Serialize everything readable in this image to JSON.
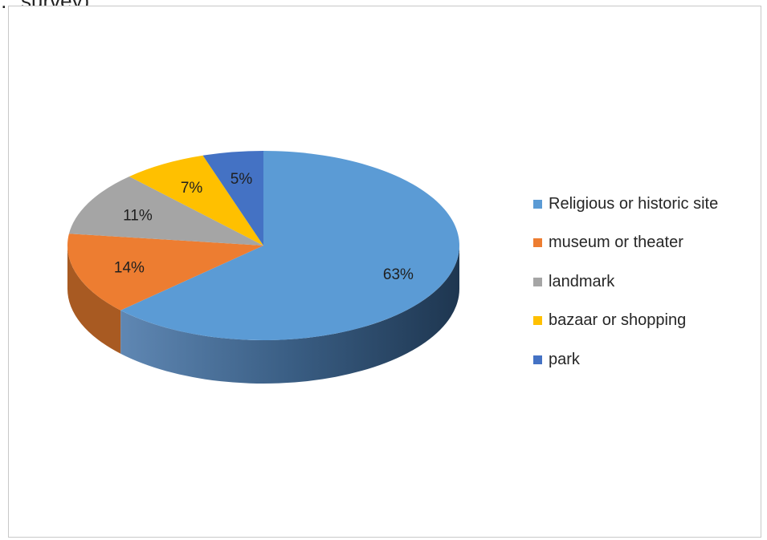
{
  "page": {
    "top_text": "…survey)."
  },
  "chart_data": {
    "type": "pie",
    "title": "",
    "categories": [
      "Religious or historic site",
      "museum or theater",
      "landmark",
      "bazaar or shopping",
      "park"
    ],
    "values": [
      63,
      14,
      11,
      7,
      5
    ],
    "labels": [
      "63%",
      "14%",
      "11%",
      "7%",
      "5%"
    ],
    "colors": [
      "#5b9bd5",
      "#ed7d31",
      "#a5a5a5",
      "#ffc000",
      "#4472c4"
    ],
    "side_colors": [
      "#2d5375",
      "#a85a22",
      "#727272",
      "#b48a00",
      "#2b4c86"
    ],
    "legend_position": "right",
    "style": "3d"
  }
}
